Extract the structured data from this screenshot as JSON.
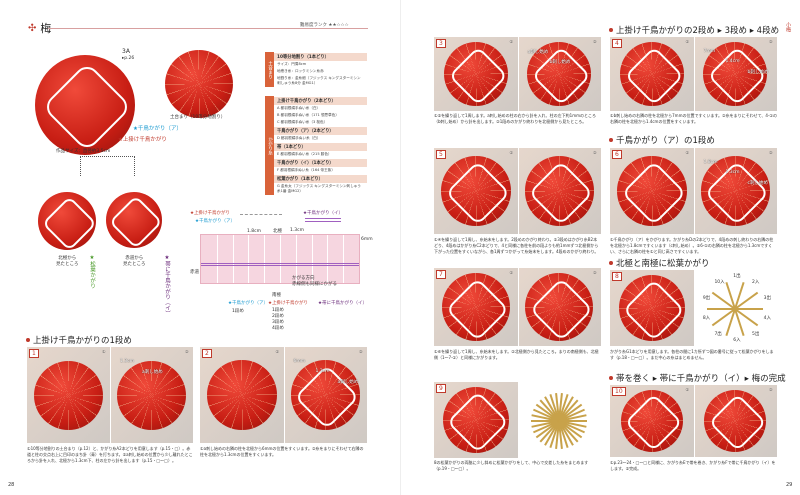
{
  "left": {
    "title": "梅",
    "title_mark": "✣",
    "difficulty": "難易度ランク ★★☆☆☆",
    "ref": "3A",
    "ref_page": "▸p.26",
    "base_ball_label": "土台まり（10等分地割り）",
    "label_chidori_a": "★千鳥かがり（ア）",
    "label_uwagake": "★上掛け千鳥かがり",
    "size": "作品サイズ：直径約3.5cm",
    "view_north": "北極から\n見たところ",
    "view_equator": "赤道から\n見たところ",
    "label_matsuba": "★松葉かがり",
    "label_obi": "★帯に千鳥かがり（イ）",
    "materials": {
      "base_side": "土台まり",
      "base_title": "10等分地割り（1本どり）",
      "base_items": [
        "サイズ：円周8cm",
        "地巻き糸：ロックミシン糸赤",
        "地割り糸：金糸細（フジックス キングスターミシン刺しゅう糸8分 金MG1）"
      ],
      "thread_side": "かがり糸",
      "groups": [
        {
          "title": "上掛け千鳥かがり（2本どり）",
          "items": [
            "A 都羽根絹手ぬい糸（白）",
            "B 都羽根絹手ぬい糸（171 想思草色）",
            "C 都羽根絹手ぬい糸（3 桜色）"
          ]
        },
        {
          "title": "千鳥かがり（ア）（2本どり）",
          "items": [
            "D 都羽根絹手ぬい糸（白）"
          ]
        },
        {
          "title": "帯（1本どり）",
          "items": [
            "E 都羽根絹手ぬい糸（215 藤色）"
          ]
        },
        {
          "title": "千鳥かがり（イ）（1本どり）",
          "items": [
            "F 都羽根絹手ぬい糸（164 帝王紫）"
          ]
        },
        {
          "title": "松葉かがり（1本どり）",
          "items": [
            "G 金糸太（フジックス キングスターミシン刺しゅう糸1番 金MG2）"
          ]
        }
      ]
    },
    "diagram": {
      "legend_uwagake": "★上掛け千鳥かがり",
      "legend_chidori_a": "★千鳥かがり（ア）",
      "legend_chidori_i": "★千鳥かがり（イ）",
      "dim_18": "1.8cm",
      "dim_13": "1.3cm",
      "dim_6": "6mm",
      "north": "北極",
      "south": "南極",
      "equator": "赤道",
      "direction": "かがる方向\n赤線側も同様にかがる",
      "bottom_chidori_a": "★千鳥かがり（ア）",
      "bottom_uwagake": "★上掛け千鳥かがり",
      "bottom_obi": "★帯に千鳥かがり（イ）",
      "rows_a": [
        "1段め"
      ],
      "rows_u": [
        "1段め",
        "2段め",
        "3段め",
        "4段め"
      ]
    },
    "section1": "上掛け千鳥かがりの1段め",
    "page_number": "28"
  },
  "right": {
    "section2": "上掛け千鳥かがりの2段め ▸ 3段め ▸ 4段め",
    "section6": "千鳥かがり（ア）の1段め",
    "section8": "北極と南極に松葉かがり",
    "section10": "帯を巻く ▸ 帯に千鳥かがり（イ）▸ 梅の完成",
    "side_tab": "小梅",
    "page_number": "29",
    "diagram8": [
      "1出",
      "2入",
      "3出",
      "4入",
      "5出",
      "6入",
      "7出",
      "8入",
      "9出",
      "10入"
    ]
  },
  "steps": [
    {
      "num": "1",
      "p1": "①",
      "p2": "②",
      "labels": [
        "1.3cm",
        "a刺し始め"
      ],
      "caption": "①10等分地割りの土台まり（p.12）と、かがり糸A2本どりを用意します（p.15・□）。赤道と柱の交点右上に目印のまち針（青）を打ちます。②a刺し始めの位置から少し離れたところから針を入れ、北極から1.3cm下、柱の左から針を出します（p.15・□〜□）。"
    },
    {
      "num": "2",
      "p1": "①",
      "p2": "②",
      "labels": [
        "6mm",
        "1.3cm",
        "a刺し始め"
      ],
      "caption": "①a刺し始めの右隣の柱を北極から6mmの位置をすくいます。②糸をまりにそわせて右隣の柱を北極から1.3cmの位置をすくいます。"
    },
    {
      "num": "3",
      "p1": "①",
      "p2": "②",
      "labels": [
        "a刺し始め",
        "b刺し始め"
      ],
      "caption": "①②を繰り返して1周します。a刺し始めの柱の右から針を入れ、柱の左下約1mmのところ（b刺し始め）から針を出します。②1段めのかがり終わりを北極側から見たところ。"
    },
    {
      "num": "4",
      "p1": "①",
      "p2": "②",
      "labels": [
        "7mm",
        "1.4cm",
        "b刺し始め"
      ],
      "caption": "①b刺し始めの右隣の柱を北極から7mmの位置ですくいます。②糸をまりにそわせて、4-①の右隣の柱を北極から1.4cmの位置をすくいます。"
    },
    {
      "num": "5",
      "p1": "①",
      "p2": "②",
      "labels": [],
      "caption": "①④を繰り返して1周し、糸始末をします。2段めのかがり終わり。②3段めはかがり糸B2本どり、4段めはかがり糸C2本どりで、4と同様に各柱を前の段よりも約1mmずつ北極側から下がった位置をすくいながら、各1周ずつかがって糸始末をします。4段めのかがり終わり。"
    },
    {
      "num": "6",
      "p1": "①",
      "p2": "②",
      "labels": [
        "1.8cm",
        "1.3cm",
        "c刺し始め"
      ],
      "caption": "①千鳥かがり（ア）をかがります。かがり糸Dの2本どりで、4段めの刺し終わりの右隣の柱を北極から1.8cmですくいます（c刺し始め）。②6-①の右隣の柱を北極から1.3cmですくい、さらに右隣の柱を①と同じ高さですくいます。"
    },
    {
      "num": "7",
      "p1": "①",
      "p2": "②",
      "labels": [],
      "caption": "①⑥を繰り返して1周し、糸始末をします。②北極側から見たところ。まりの南極側も、北極側（1〜7-①）と同様にかがります。"
    },
    {
      "num": "8",
      "p1": "",
      "p2": "",
      "labels": [],
      "caption": "かがり糸G1本どりを用意します。各柱の間に1カ所ずつ図の番号に従って松葉かがりをします（p.18・□〜□）。まだ中心の糸はまとめません。"
    },
    {
      "num": "9",
      "p1": "",
      "p2": "",
      "labels": [],
      "caption": "8の松葉かがりの両脇に少し斜めに松葉かがりをして、中心で交差した糸をまとめます（p.19・□〜□）。"
    },
    {
      "num": "10",
      "p1": "①",
      "p2": "②",
      "labels": [],
      "caption": "①p.23〜24・□〜□と同様に、かがり糸Eで帯を巻き、かがり糸Fで帯に千鳥かがり（イ）をします。②完成。"
    }
  ],
  "colors": {
    "accent": "#c0392b",
    "table_side": "#d9633a",
    "table_header": "#f4d9cc",
    "blue": "#1a9ad0"
  }
}
